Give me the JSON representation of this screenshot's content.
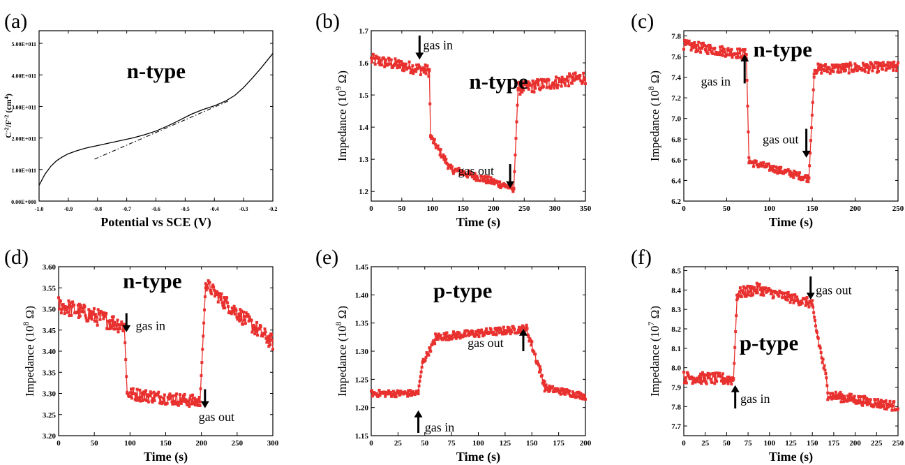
{
  "colors": {
    "series": "#e8312f",
    "axis": "#000000"
  },
  "chart_data": [
    {
      "panel": "(a)",
      "type": "line",
      "xlabel": "Potential vs SCE (V)",
      "ylabel_main": "C",
      "ylabel_sup1": "-2",
      "ylabel_mid": "/F",
      "ylabel_sup2": "-2",
      "ylabel_end": " (cm",
      "ylabel_sup3": "4",
      "ylabel_close": ")",
      "xlim": [
        -1.0,
        -0.2
      ],
      "ylim": [
        0,
        540000000000.0
      ],
      "xticks": [
        -1.0,
        -0.9,
        -0.8,
        -0.7,
        -0.6,
        -0.5,
        -0.4,
        -0.3,
        -0.2
      ],
      "xtick_labels": [
        "-1.0",
        "-0.9",
        "-0.8",
        "-0.7",
        "-0.6",
        "-0.5",
        "-0.4",
        "-0.3",
        "-0.2"
      ],
      "yticks": [
        0,
        100000000000.0,
        200000000000.0,
        300000000000.0,
        400000000000.0,
        500000000000.0
      ],
      "ytick_labels": [
        "0.00E+000",
        "1.00E+011",
        "2.00E+011",
        "3.00E+011",
        "4.00E+011",
        "5.00E+011"
      ],
      "label": "n-type",
      "series": [
        {
          "style": "solid",
          "x": [
            -1.0,
            -0.98,
            -0.96,
            -0.94,
            -0.92,
            -0.9,
            -0.87,
            -0.84,
            -0.8,
            -0.76,
            -0.72,
            -0.68,
            -0.64,
            -0.6,
            -0.56,
            -0.52,
            -0.48,
            -0.44,
            -0.4,
            -0.36,
            -0.33,
            -0.3,
            -0.27,
            -0.24,
            -0.22,
            -0.2
          ],
          "y": [
            50000000000.0,
            85000000000.0,
            110000000000.0,
            128000000000.0,
            140000000000.0,
            150000000000.0,
            160000000000.0,
            168000000000.0,
            176000000000.0,
            184000000000.0,
            192000000000.0,
            200000000000.0,
            210000000000.0,
            222000000000.0,
            238000000000.0,
            256000000000.0,
            275000000000.0,
            290000000000.0,
            302000000000.0,
            318000000000.0,
            335000000000.0,
            360000000000.0,
            390000000000.0,
            422000000000.0,
            445000000000.0,
            468000000000.0
          ]
        },
        {
          "style": "dashdot",
          "x": [
            -0.81,
            -0.35
          ],
          "y": [
            133000000000.0,
            318000000000.0
          ]
        }
      ]
    },
    {
      "panel": "(b)",
      "type": "scatter",
      "xlabel": "Time (s)",
      "ylabel_main": "Impedance (10",
      "ylabel_sup": "9",
      "ylabel_end": " Ω)",
      "xlim": [
        0,
        350
      ],
      "ylim": [
        1.17,
        1.7
      ],
      "xticks": [
        0,
        50,
        100,
        150,
        200,
        250,
        300,
        350
      ],
      "yticks": [
        1.2,
        1.3,
        1.4,
        1.5,
        1.6,
        1.7
      ],
      "ytick_labels": [
        "1.2",
        "1.3",
        "1.4",
        "1.5",
        "1.6",
        "1.7"
      ],
      "label": "n-type",
      "label_pos": [
        160,
        1.52
      ],
      "annotations": [
        {
          "text": "gas in",
          "arrow": "down",
          "x": 79,
          "y_tip": 1.61,
          "y_tail": 1.685,
          "text_x": 85,
          "text_y": 1.655
        },
        {
          "text": "gas out",
          "arrow": "down",
          "x": 227,
          "y_tip": 1.21,
          "y_tail": 1.285,
          "text_x": 142,
          "text_y": 1.265
        }
      ],
      "segments": [
        {
          "x0": 0,
          "x1": 95,
          "y0": 1.61,
          "y1": 1.575,
          "noise": 0.018
        },
        {
          "x0": 95,
          "x1": 97,
          "y0": 1.575,
          "y1": 1.37,
          "noise": 0
        },
        {
          "x0": 97,
          "x1": 130,
          "y0": 1.37,
          "y1": 1.27,
          "noise": 0.012
        },
        {
          "x0": 130,
          "x1": 233,
          "y0": 1.27,
          "y1": 1.21,
          "noise": 0.012
        },
        {
          "x0": 233,
          "x1": 240,
          "y0": 1.21,
          "y1": 1.52,
          "noise": 0
        },
        {
          "x0": 240,
          "x1": 350,
          "y0": 1.52,
          "y1": 1.555,
          "noise": 0.02
        }
      ]
    },
    {
      "panel": "(c)",
      "type": "scatter",
      "xlabel": "Time (s)",
      "ylabel_main": "Impedance (10",
      "ylabel_sup": "8",
      "ylabel_end": " Ω)",
      "xlim": [
        0,
        250
      ],
      "ylim": [
        6.2,
        7.85
      ],
      "xticks": [
        0,
        50,
        100,
        150,
        200,
        250
      ],
      "yticks": [
        6.2,
        6.4,
        6.6,
        6.8,
        7.0,
        7.2,
        7.4,
        7.6,
        7.8
      ],
      "ytick_labels": [
        "6.2",
        "6.4",
        "6.6",
        "6.8",
        "7.0",
        "7.2",
        "7.4",
        "7.6",
        "7.8"
      ],
      "label": "n-type",
      "label_pos": [
        81,
        7.6
      ],
      "annotations": [
        {
          "text": "gas in",
          "arrow": "up",
          "x": 71,
          "y_tip": 7.62,
          "y_tail": 7.34,
          "text_x": 20,
          "text_y": 7.36
        },
        {
          "text": "gas out",
          "arrow": "down",
          "x": 143,
          "y_tip": 6.62,
          "y_tail": 6.9,
          "text_x": 92,
          "text_y": 6.8
        }
      ],
      "segments": [
        {
          "x0": 0,
          "x1": 73,
          "y0": 7.71,
          "y1": 7.62,
          "noise": 0.05
        },
        {
          "x0": 73,
          "x1": 76,
          "y0": 7.62,
          "y1": 6.62,
          "noise": 0
        },
        {
          "x0": 76,
          "x1": 146,
          "y0": 6.58,
          "y1": 6.42,
          "noise": 0.035
        },
        {
          "x0": 146,
          "x1": 152,
          "y0": 6.42,
          "y1": 7.4,
          "noise": 0
        },
        {
          "x0": 152,
          "x1": 250,
          "y0": 7.48,
          "y1": 7.5,
          "noise": 0.05
        }
      ]
    },
    {
      "panel": "(d)",
      "type": "scatter",
      "xlabel": "Time (s)",
      "ylabel_main": "Impedance (10",
      "ylabel_sup": "8",
      "ylabel_end": " Ω)",
      "xlim": [
        0,
        300
      ],
      "ylim": [
        3.2,
        3.6
      ],
      "xticks": [
        0,
        50,
        100,
        150,
        200,
        250,
        300
      ],
      "yticks": [
        3.2,
        3.25,
        3.3,
        3.35,
        3.4,
        3.45,
        3.5,
        3.55,
        3.6
      ],
      "ytick_labels": [
        "3.20",
        "3.25",
        "3.30",
        "3.35",
        "3.40",
        "3.45",
        "3.50",
        "3.55",
        "3.60"
      ],
      "label": "n-type",
      "label_pos": [
        90,
        3.55
      ],
      "annotations": [
        {
          "text": "gas in",
          "arrow": "down",
          "x": 95,
          "y_tip": 3.445,
          "y_tail": 3.49,
          "text_x": 108,
          "text_y": 3.46
        },
        {
          "text": "gas out",
          "arrow": "down",
          "x": 205,
          "y_tip": 3.265,
          "y_tail": 3.31,
          "text_x": 196,
          "text_y": 3.245
        }
      ],
      "segments": [
        {
          "x0": 0,
          "x1": 92,
          "y0": 3.51,
          "y1": 3.46,
          "noise": 0.02
        },
        {
          "x0": 92,
          "x1": 96,
          "y0": 3.46,
          "y1": 3.3,
          "noise": 0
        },
        {
          "x0": 96,
          "x1": 198,
          "y0": 3.3,
          "y1": 3.28,
          "noise": 0.015
        },
        {
          "x0": 198,
          "x1": 206,
          "y0": 3.28,
          "y1": 3.56,
          "noise": 0
        },
        {
          "x0": 206,
          "x1": 230,
          "y0": 3.56,
          "y1": 3.52,
          "noise": 0.015
        },
        {
          "x0": 230,
          "x1": 300,
          "y0": 3.52,
          "y1": 3.42,
          "noise": 0.018
        }
      ]
    },
    {
      "panel": "(e)",
      "type": "scatter",
      "xlabel": "Time (s)",
      "ylabel_main": "Impedance (10",
      "ylabel_sup": "8",
      "ylabel_end": " Ω)",
      "xlim": [
        0,
        200
      ],
      "ylim": [
        1.15,
        1.45
      ],
      "xticks": [
        0,
        25,
        50,
        75,
        100,
        125,
        150,
        175,
        200
      ],
      "yticks": [
        1.15,
        1.2,
        1.25,
        1.3,
        1.35,
        1.4,
        1.45
      ],
      "ytick_labels": [
        "1.15",
        "1.20",
        "1.25",
        "1.30",
        "1.35",
        "1.40",
        "1.45"
      ],
      "label": "p-type",
      "label_pos": [
        58,
        1.395
      ],
      "annotations": [
        {
          "text": "gas in",
          "arrow": "up",
          "x": 44,
          "y_tip": 1.195,
          "y_tail": 1.155,
          "text_x": 50,
          "text_y": 1.165
        },
        {
          "text": "gas out",
          "arrow": "up",
          "x": 142,
          "y_tip": 1.34,
          "y_tail": 1.3,
          "text_x": 90,
          "text_y": 1.315
        }
      ],
      "segments": [
        {
          "x0": 0,
          "x1": 44,
          "y0": 1.225,
          "y1": 1.225,
          "noise": 0.006
        },
        {
          "x0": 44,
          "x1": 48,
          "y0": 1.23,
          "y1": 1.28,
          "noise": 0
        },
        {
          "x0": 48,
          "x1": 60,
          "y0": 1.28,
          "y1": 1.32,
          "noise": 0.006
        },
        {
          "x0": 60,
          "x1": 145,
          "y0": 1.325,
          "y1": 1.34,
          "noise": 0.007
        },
        {
          "x0": 145,
          "x1": 162,
          "y0": 1.34,
          "y1": 1.24,
          "noise": 0.008
        },
        {
          "x0": 162,
          "x1": 200,
          "y0": 1.235,
          "y1": 1.22,
          "noise": 0.006
        }
      ]
    },
    {
      "panel": "(f)",
      "type": "scatter",
      "xlabel": "Time (s)",
      "ylabel_main": "Impedance (10",
      "ylabel_sup": "7",
      "ylabel_end": " Ω)",
      "xlim": [
        0,
        250
      ],
      "ylim": [
        7.65,
        8.52
      ],
      "xticks": [
        0,
        25,
        50,
        75,
        100,
        125,
        150,
        175,
        200,
        225,
        250
      ],
      "yticks": [
        7.7,
        7.8,
        7.9,
        8.0,
        8.1,
        8.2,
        8.3,
        8.4,
        8.5
      ],
      "ytick_labels": [
        "7.7",
        "7.8",
        "7.9",
        "8.0",
        "8.1",
        "8.2",
        "8.3",
        "8.4",
        "8.5"
      ],
      "label": "p-type",
      "label_pos": [
        65,
        8.09
      ],
      "annotations": [
        {
          "text": "gas in",
          "arrow": "up",
          "x": 60,
          "y_tip": 7.91,
          "y_tail": 7.79,
          "text_x": 66,
          "text_y": 7.84
        },
        {
          "text": "gas out",
          "arrow": "down",
          "x": 148,
          "y_tip": 8.35,
          "y_tail": 8.47,
          "text_x": 154,
          "text_y": 8.4
        }
      ],
      "segments": [
        {
          "x0": 0,
          "x1": 58,
          "y0": 7.95,
          "y1": 7.94,
          "noise": 0.03
        },
        {
          "x0": 58,
          "x1": 62,
          "y0": 7.94,
          "y1": 8.35,
          "noise": 0
        },
        {
          "x0": 62,
          "x1": 90,
          "y0": 8.38,
          "y1": 8.41,
          "noise": 0.03
        },
        {
          "x0": 90,
          "x1": 150,
          "y0": 8.4,
          "y1": 8.33,
          "noise": 0.025
        },
        {
          "x0": 150,
          "x1": 168,
          "y0": 8.3,
          "y1": 7.9,
          "noise": 0.03
        },
        {
          "x0": 168,
          "x1": 250,
          "y0": 7.86,
          "y1": 7.8,
          "noise": 0.025
        }
      ]
    }
  ]
}
